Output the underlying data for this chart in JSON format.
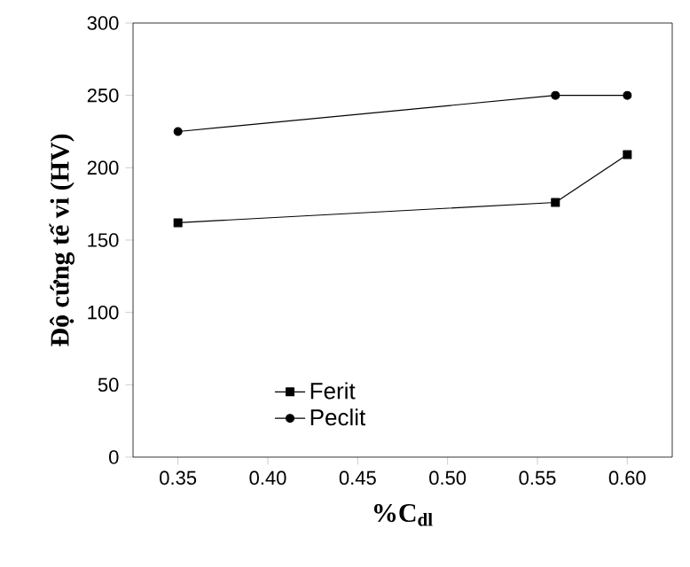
{
  "chart_data": {
    "type": "line",
    "xlabel": "%C$_{dl}$",
    "ylabel": "Độ cứng tế vi (HV)",
    "x": [
      0.35,
      0.56,
      0.6
    ],
    "series": [
      {
        "name": "Ferit",
        "color": "#000000",
        "marker": "square",
        "values": [
          162,
          176,
          209
        ]
      },
      {
        "name": "Peclit",
        "color": "#000000",
        "marker": "circle",
        "values": [
          225,
          250,
          250
        ]
      }
    ],
    "xlim": [
      0.325,
      0.625
    ],
    "ylim": [
      0,
      300
    ],
    "xticks": [
      {
        "value": 0.35,
        "label": "0.35"
      },
      {
        "value": 0.4,
        "label": "0.40"
      },
      {
        "value": 0.45,
        "label": "0.45"
      },
      {
        "value": 0.5,
        "label": "0.50"
      },
      {
        "value": 0.55,
        "label": "0.55"
      },
      {
        "value": 0.6,
        "label": "0.60"
      }
    ],
    "yticks": [
      0,
      50,
      100,
      150,
      200,
      250,
      300
    ],
    "legend": "bottom",
    "line_style": "solid"
  }
}
